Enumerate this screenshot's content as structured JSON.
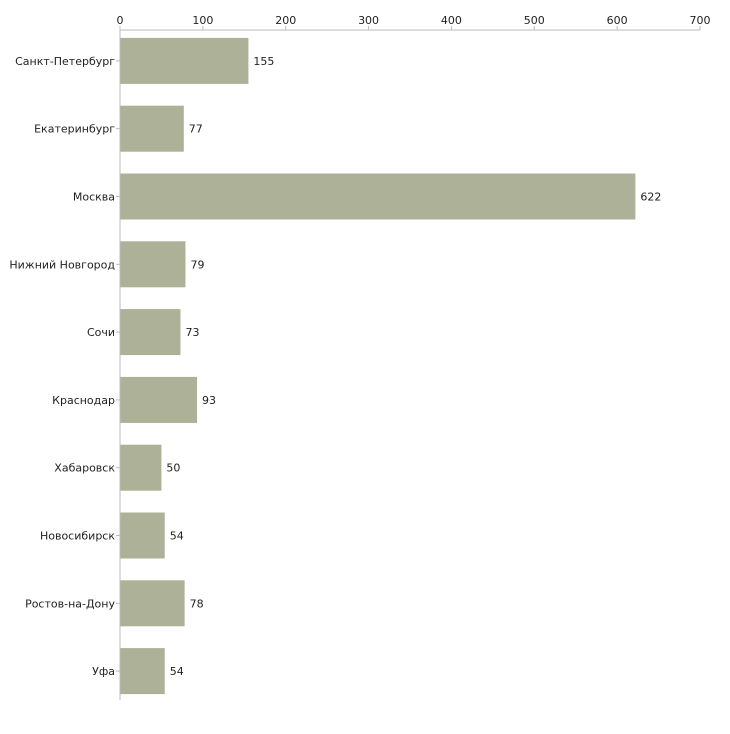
{
  "chart_data": {
    "type": "bar",
    "orientation": "horizontal",
    "title": "",
    "xlabel": "",
    "ylabel": "",
    "xlim": [
      0,
      700
    ],
    "x_ticks": [
      0,
      100,
      200,
      300,
      400,
      500,
      600,
      700
    ],
    "x_tick_labels": [
      "0",
      "100",
      "200",
      "300",
      "400",
      "500",
      "600",
      "700"
    ],
    "axis_position": "top",
    "grid": false,
    "categories": [
      "Санкт-Петербург",
      "Екатеринбург",
      "Москва",
      "Нижний Новгород",
      "Сочи",
      "Краснодар",
      "Хабаровск",
      "Новосибирск",
      "Ростов-на-Дону",
      "Уфа"
    ],
    "values": [
      155,
      77,
      622,
      79,
      73,
      93,
      50,
      54,
      78,
      54
    ],
    "value_labels": [
      "155",
      "77",
      "622",
      "79",
      "73",
      "93",
      "50",
      "54",
      "78",
      "54"
    ],
    "bar_color": "#adb197",
    "axis_color": "#bbbbbb"
  }
}
